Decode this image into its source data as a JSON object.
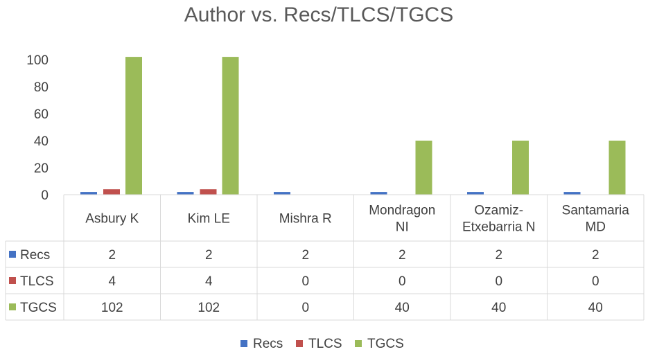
{
  "chart_data": {
    "type": "bar",
    "title": "Author vs. Recs/TLCS/TGCS",
    "categories": [
      [
        "Asbury K"
      ],
      [
        "Kim LE"
      ],
      [
        "Mishra R"
      ],
      [
        "Mondragon",
        "NI"
      ],
      [
        "Ozamiz-",
        "Etxebarria N"
      ],
      [
        "Santamaria",
        "MD"
      ]
    ],
    "series": [
      {
        "name": "Recs",
        "color": "#4472C4",
        "values": [
          2,
          2,
          2,
          2,
          2,
          2
        ]
      },
      {
        "name": "TLCS",
        "color": "#C0504D",
        "values": [
          4,
          4,
          0,
          0,
          0,
          0
        ]
      },
      {
        "name": "TGCS",
        "color": "#9BBB59",
        "values": [
          102,
          102,
          0,
          40,
          40,
          40
        ]
      }
    ],
    "ylim": [
      0,
      100
    ],
    "yticks": [
      0,
      20,
      40,
      60,
      80,
      100
    ],
    "grid": false,
    "data_table": true,
    "legend": "bottom"
  }
}
